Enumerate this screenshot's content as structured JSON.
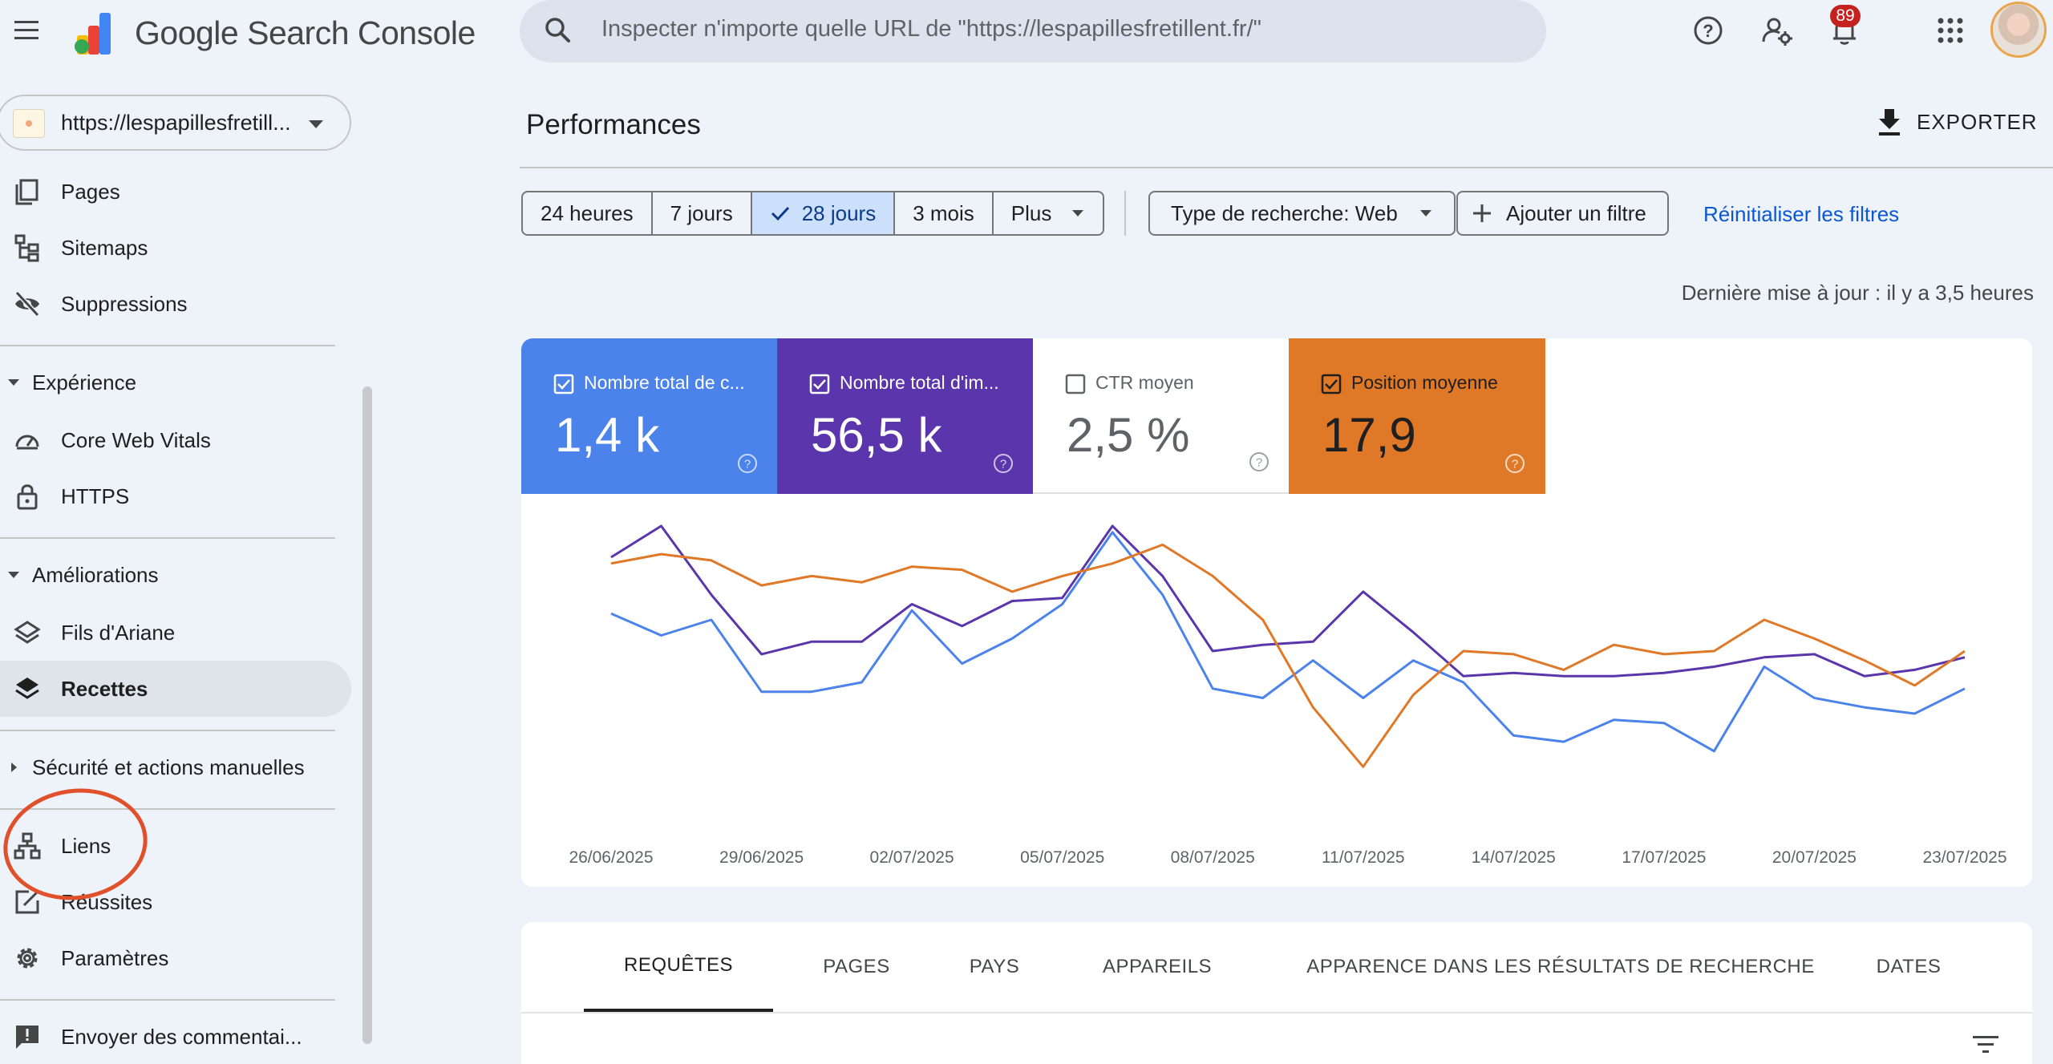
{
  "app": {
    "brand": "Google Search Console"
  },
  "search": {
    "placeholder": "Inspecter n'importe quelle URL de \"https://lespapillesfretillent.fr/\""
  },
  "header": {
    "notification_count": "89"
  },
  "property": {
    "label": "https://lespapillesfretill..."
  },
  "sidebar": {
    "items_top": [
      {
        "label": "Pages",
        "icon": "pages-icon"
      },
      {
        "label": "Sitemaps",
        "icon": "sitemap-icon"
      },
      {
        "label": "Suppressions",
        "icon": "eye-off-icon"
      }
    ],
    "section_experience": {
      "title": "Expérience",
      "items": [
        {
          "label": "Core Web Vitals",
          "icon": "gauge-icon"
        },
        {
          "label": "HTTPS",
          "icon": "lock-icon"
        }
      ]
    },
    "section_ameliorations": {
      "title": "Améliorations",
      "items": [
        {
          "label": "Fils d'Ariane",
          "icon": "layers-icon"
        },
        {
          "label": "Recettes",
          "icon": "layers-icon",
          "active": true
        }
      ]
    },
    "section_securite": {
      "title": "Sécurité et actions manuelles"
    },
    "items_bottom": [
      {
        "label": "Liens",
        "icon": "links-icon"
      },
      {
        "label": "Réussites",
        "icon": "edit-box-icon"
      },
      {
        "label": "Paramètres",
        "icon": "gear-icon"
      }
    ],
    "feedback": {
      "label": "Envoyer des commentai...",
      "icon": "feedback-icon"
    }
  },
  "page": {
    "title": "Performances",
    "export_label": "EXPORTER",
    "date_ranges": [
      "24 heures",
      "7 jours",
      "28 jours",
      "3 mois",
      "Plus"
    ],
    "selected_range": "28 jours",
    "search_type_filter": "Type de recherche: Web",
    "add_filter": "Ajouter un filtre",
    "reset_filters": "Réinitialiser les filtres",
    "last_update": "Dernière mise à jour : il y a 3,5 heures"
  },
  "metrics": {
    "clicks": {
      "label": "Nombre total de c...",
      "value": "1,4 k",
      "checked": true,
      "color": "#4b83ea"
    },
    "impressions": {
      "label": "Nombre total d'im...",
      "value": "56,5 k",
      "checked": true,
      "color": "#5a35ab"
    },
    "ctr": {
      "label": "CTR moyen",
      "value": "2,5 %",
      "checked": false
    },
    "position": {
      "label": "Position moyenne",
      "value": "17,9",
      "checked": true,
      "color": "#df7827"
    }
  },
  "chart_data": {
    "type": "line",
    "x_tick_labels": [
      "26/06/2025",
      "29/06/2025",
      "02/07/2025",
      "05/07/2025",
      "08/07/2025",
      "11/07/2025",
      "14/07/2025",
      "17/07/2025",
      "20/07/2025",
      "23/07/2025"
    ],
    "grid": false,
    "legend": "none",
    "axes_values_shown": false,
    "series": [
      {
        "color": "#4b83ea",
        "values": [
          72,
          65,
          70,
          47,
          47,
          50,
          73,
          56,
          64,
          75,
          98,
          78,
          48,
          45,
          57,
          45,
          57,
          50,
          33,
          31,
          38,
          37,
          28,
          55,
          45,
          42,
          40,
          48
        ]
      },
      {
        "color": "#5a35ab",
        "values": [
          90,
          100,
          78,
          59,
          63,
          63,
          75,
          68,
          76,
          77,
          100,
          84,
          60,
          62,
          63,
          79,
          66,
          52,
          53,
          52,
          52,
          53,
          55,
          58,
          59,
          52,
          54,
          58
        ]
      },
      {
        "color": "#df7827",
        "values": [
          88,
          91,
          89,
          81,
          84,
          82,
          87,
          86,
          79,
          84,
          88,
          94,
          84,
          70,
          42,
          23,
          46,
          60,
          59,
          54,
          62,
          59,
          60,
          70,
          64,
          57,
          49,
          60
        ]
      }
    ]
  },
  "tabs": [
    "REQUÊTES",
    "PAGES",
    "PAYS",
    "APPAREILS",
    "APPARENCE DANS LES RÉSULTATS DE RECHERCHE",
    "DATES"
  ],
  "active_tab": "REQUÊTES"
}
